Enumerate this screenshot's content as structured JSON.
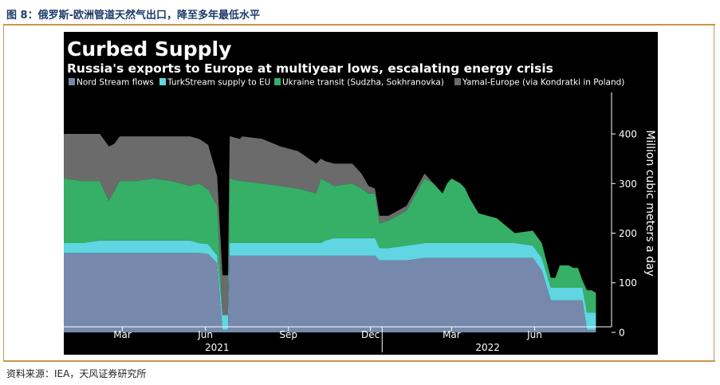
{
  "figure": {
    "caption": "图 8：俄罗斯-欧洲管道天然气出口，降至多年最低水平",
    "source": "资料来源：IEA，天风证券研究所"
  },
  "colors": {
    "background": "#000000",
    "nord_stream": "#7689ad",
    "turkstream": "#5fd6e2",
    "ukraine": "#35b066",
    "yamal": "#6b6b6b",
    "text": "#ffffff",
    "rule": "#c8974a",
    "caption": "#1f3b6b"
  },
  "chart_data": {
    "type": "area",
    "stacked": true,
    "title": "Curbed Supply",
    "subtitle": "Russia's exports to Europe at multiyear lows, escalating energy crisis",
    "ylabel": "Million cubic meters a day",
    "ylim": [
      -45,
      490
    ],
    "yticks": [
      0,
      100,
      200,
      300,
      400
    ],
    "xlim": [
      0,
      610
    ],
    "month_ticks": [
      {
        "x": 65,
        "label": "Mar"
      },
      {
        "x": 157,
        "label": "Jun"
      },
      {
        "x": 249,
        "label": "Sep"
      },
      {
        "x": 340,
        "label": "Dec"
      },
      {
        "x": 430,
        "label": "Mar"
      },
      {
        "x": 522,
        "label": "Jun"
      }
    ],
    "year_labels": [
      {
        "x": 170,
        "label": "2021"
      },
      {
        "x": 470,
        "label": "2022"
      }
    ],
    "year_divider_x": 353,
    "legend": [
      "Nord Stream flows",
      "TurkStream supply to EU",
      "Ukraine transit (Sudzha, Sokhranovka)",
      "Yamal-Europe (via Kondratki in Poland)"
    ],
    "x": [
      0,
      20,
      40,
      50,
      56,
      62,
      80,
      100,
      120,
      140,
      150,
      160,
      170,
      176,
      182,
      184,
      185,
      195,
      198,
      220,
      240,
      260,
      280,
      285,
      290,
      300,
      320,
      330,
      338,
      345,
      350,
      360,
      380,
      400,
      410,
      420,
      425,
      430,
      440,
      445,
      450,
      460,
      470,
      480,
      500,
      520,
      530,
      540,
      545,
      550,
      555,
      560,
      565,
      570,
      575,
      580,
      585,
      590
    ],
    "series": [
      {
        "name": "Nord Stream flows",
        "values": [
          160,
          160,
          160,
          160,
          160,
          160,
          160,
          160,
          160,
          160,
          160,
          158,
          140,
          5,
          5,
          155,
          155,
          155,
          155,
          155,
          155,
          155,
          155,
          155,
          155,
          155,
          155,
          155,
          155,
          155,
          145,
          145,
          145,
          150,
          150,
          150,
          150,
          150,
          150,
          150,
          150,
          150,
          150,
          150,
          150,
          150,
          125,
          65,
          65,
          65,
          65,
          65,
          65,
          65,
          65,
          5,
          5,
          5
        ]
      },
      {
        "name": "TurkStream supply to EU",
        "values": [
          20,
          20,
          25,
          25,
          25,
          25,
          25,
          25,
          25,
          25,
          20,
          20,
          15,
          30,
          30,
          25,
          25,
          25,
          25,
          25,
          25,
          25,
          25,
          25,
          30,
          35,
          35,
          35,
          35,
          35,
          25,
          25,
          30,
          30,
          30,
          30,
          30,
          30,
          30,
          30,
          30,
          30,
          30,
          30,
          30,
          25,
          25,
          25,
          25,
          25,
          25,
          25,
          25,
          25,
          25,
          35,
          35,
          35
        ]
      },
      {
        "name": "Ukraine transit (Sudzha, Sokhranovka)",
        "values": [
          130,
          125,
          120,
          80,
          100,
          120,
          120,
          125,
          120,
          110,
          120,
          110,
          100,
          0,
          0,
          130,
          130,
          125,
          125,
          120,
          115,
          110,
          100,
          130,
          120,
          105,
          110,
          100,
          90,
          90,
          50,
          55,
          70,
          130,
          120,
          100,
          120,
          130,
          120,
          110,
          90,
          60,
          55,
          50,
          20,
          30,
          30,
          20,
          20,
          45,
          45,
          45,
          40,
          40,
          15,
          45,
          45,
          40
        ]
      },
      {
        "name": "Yamal-Europe (via Kondratki in Poland)",
        "values": [
          90,
          95,
          95,
          110,
          95,
          90,
          90,
          85,
          90,
          100,
          90,
          90,
          60,
          80,
          80,
          85,
          85,
          85,
          90,
          90,
          80,
          75,
          60,
          40,
          40,
          45,
          40,
          30,
          15,
          10,
          15,
          10,
          10,
          10,
          0,
          0,
          0,
          0,
          0,
          0,
          0,
          0,
          0,
          0,
          0,
          0,
          0,
          0,
          0,
          0,
          0,
          0,
          0,
          0,
          0,
          0,
          0,
          0
        ]
      }
    ]
  }
}
